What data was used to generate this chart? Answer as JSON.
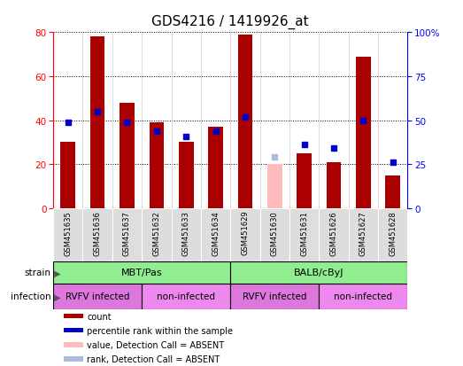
{
  "title": "GDS4216 / 1419926_at",
  "samples": [
    "GSM451635",
    "GSM451636",
    "GSM451637",
    "GSM451632",
    "GSM451633",
    "GSM451634",
    "GSM451629",
    "GSM451630",
    "GSM451631",
    "GSM451626",
    "GSM451627",
    "GSM451628"
  ],
  "count_values": [
    30,
    78,
    48,
    39,
    30,
    37,
    79,
    20,
    25,
    21,
    69,
    15
  ],
  "count_absent": [
    false,
    false,
    false,
    false,
    false,
    false,
    false,
    true,
    false,
    false,
    false,
    false
  ],
  "rank_values": [
    49,
    55,
    49,
    44,
    41,
    44,
    52,
    29,
    36,
    34,
    50,
    26
  ],
  "rank_absent": [
    false,
    false,
    false,
    false,
    false,
    false,
    false,
    true,
    false,
    false,
    false,
    false
  ],
  "strain_groups": [
    {
      "label": "MBT/Pas",
      "start": 0,
      "end": 6,
      "color": "#90ee90"
    },
    {
      "label": "BALB/cByJ",
      "start": 6,
      "end": 12,
      "color": "#90ee90"
    }
  ],
  "infection_groups": [
    {
      "label": "RVFV infected",
      "start": 0,
      "end": 3,
      "color": "#dd77dd"
    },
    {
      "label": "non-infected",
      "start": 3,
      "end": 6,
      "color": "#ee88ee"
    },
    {
      "label": "RVFV infected",
      "start": 6,
      "end": 9,
      "color": "#dd77dd"
    },
    {
      "label": "non-infected",
      "start": 9,
      "end": 12,
      "color": "#ee88ee"
    }
  ],
  "left_ylim": [
    0,
    80
  ],
  "right_ylim": [
    0,
    100
  ],
  "left_yticks": [
    0,
    20,
    40,
    60,
    80
  ],
  "right_yticks": [
    0,
    25,
    50,
    75,
    100
  ],
  "right_yticklabels": [
    "0",
    "25",
    "50",
    "75",
    "100%"
  ],
  "bar_color_normal": "#aa0000",
  "bar_color_absent": "#ffbbbb",
  "rank_color_normal": "#0000cc",
  "rank_color_absent": "#aabbdd",
  "grid_color": "#000000",
  "bg_color": "#ffffff",
  "plot_bg": "#ffffff",
  "sample_bg": "#dddddd",
  "title_fontsize": 11
}
